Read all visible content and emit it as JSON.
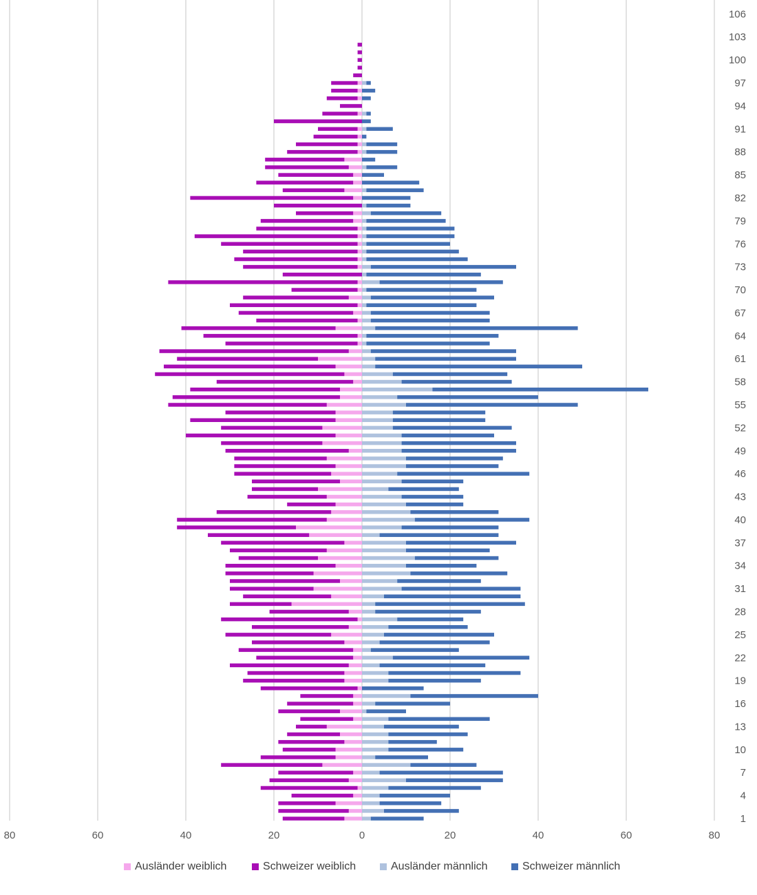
{
  "chart_data": {
    "type": "bar",
    "orientation": "horizontal-population-pyramid",
    "stacked": true,
    "title": "",
    "xlabel": "",
    "ylabel": "",
    "xlim": [
      -80,
      80
    ],
    "x_ticks": [
      -80,
      -60,
      -40,
      -20,
      0,
      20,
      40,
      60,
      80
    ],
    "x_tick_labels": [
      "80",
      "60",
      "40",
      "20",
      "0",
      "20",
      "40",
      "60",
      "80"
    ],
    "y_tick_labels": [
      "1",
      "4",
      "7",
      "10",
      "13",
      "16",
      "19",
      "22",
      "25",
      "28",
      "31",
      "34",
      "37",
      "40",
      "43",
      "46",
      "49",
      "52",
      "55",
      "58",
      "61",
      "64",
      "67",
      "70",
      "73",
      "76",
      "79",
      "82",
      "85",
      "88",
      "91",
      "94",
      "97",
      "100",
      "103",
      "106"
    ],
    "grid": "vertical",
    "legend_position": "bottom",
    "ages": [
      1,
      2,
      3,
      4,
      5,
      6,
      7,
      8,
      9,
      10,
      11,
      12,
      13,
      14,
      15,
      16,
      17,
      18,
      19,
      20,
      21,
      22,
      23,
      24,
      25,
      26,
      27,
      28,
      29,
      30,
      31,
      32,
      33,
      34,
      35,
      36,
      37,
      38,
      39,
      40,
      41,
      42,
      43,
      44,
      45,
      46,
      47,
      48,
      49,
      50,
      51,
      52,
      53,
      54,
      55,
      56,
      57,
      58,
      59,
      60,
      61,
      62,
      63,
      64,
      65,
      66,
      67,
      68,
      69,
      70,
      71,
      72,
      73,
      74,
      75,
      76,
      77,
      78,
      79,
      80,
      81,
      82,
      83,
      84,
      85,
      86,
      87,
      88,
      89,
      90,
      91,
      92,
      93,
      94,
      95,
      96,
      97,
      98,
      99,
      100,
      101,
      102,
      103,
      104,
      105,
      106
    ],
    "series": [
      {
        "name": "Ausländer weiblich",
        "color": "#f5a8ec",
        "side": "left",
        "values": [
          4,
          3,
          6,
          2,
          1,
          3,
          2,
          9,
          6,
          6,
          4,
          5,
          8,
          2,
          5,
          2,
          2,
          1,
          4,
          4,
          3,
          2,
          2,
          4,
          7,
          3,
          1,
          3,
          16,
          7,
          11,
          5,
          11,
          6,
          10,
          8,
          4,
          12,
          15,
          8,
          7,
          6,
          8,
          10,
          5,
          7,
          6,
          8,
          3,
          9,
          6,
          9,
          6,
          6,
          8,
          5,
          5,
          2,
          4,
          6,
          10,
          3,
          1,
          1,
          6,
          1,
          2,
          1,
          3,
          1,
          1,
          0,
          1,
          1,
          1,
          1,
          1,
          1,
          2,
          2,
          0,
          2,
          4,
          2,
          2,
          3,
          4,
          1,
          1,
          1,
          1,
          0,
          1,
          0,
          1,
          1,
          1,
          0,
          0,
          0,
          0,
          0,
          0,
          0,
          0,
          0
        ]
      },
      {
        "name": "Schweizer weiblich",
        "color": "#a80eb5",
        "side": "left",
        "values": [
          14,
          16,
          13,
          14,
          22,
          18,
          17,
          23,
          17,
          12,
          15,
          12,
          7,
          12,
          14,
          15,
          12,
          22,
          23,
          22,
          27,
          22,
          26,
          21,
          24,
          22,
          31,
          18,
          14,
          20,
          19,
          25,
          20,
          25,
          18,
          22,
          28,
          23,
          27,
          34,
          26,
          11,
          18,
          15,
          20,
          22,
          23,
          21,
          28,
          23,
          34,
          23,
          33,
          25,
          36,
          38,
          34,
          31,
          43,
          39,
          32,
          43,
          30,
          35,
          35,
          23,
          26,
          29,
          24,
          15,
          43,
          18,
          26,
          28,
          26,
          31,
          37,
          23,
          21,
          13,
          20,
          37,
          14,
          22,
          17,
          19,
          18,
          16,
          14,
          10,
          9,
          20,
          8,
          5,
          7,
          6,
          6,
          2,
          1,
          1,
          1,
          1,
          0,
          0,
          0,
          0
        ]
      },
      {
        "name": "Ausländer männlich",
        "color": "#afc2de",
        "side": "right",
        "values": [
          2,
          5,
          4,
          4,
          6,
          10,
          4,
          11,
          3,
          6,
          6,
          6,
          5,
          6,
          1,
          3,
          11,
          0,
          6,
          6,
          4,
          7,
          2,
          4,
          5,
          6,
          8,
          3,
          3,
          5,
          9,
          8,
          11,
          10,
          12,
          10,
          10,
          4,
          9,
          12,
          11,
          10,
          9,
          6,
          9,
          8,
          10,
          10,
          9,
          9,
          9,
          7,
          7,
          7,
          10,
          8,
          16,
          9,
          7,
          3,
          3,
          2,
          1,
          1,
          3,
          2,
          2,
          1,
          2,
          1,
          4,
          1,
          2,
          1,
          1,
          1,
          1,
          1,
          1,
          2,
          1,
          0,
          1,
          0,
          0,
          1,
          0,
          1,
          1,
          0,
          1,
          0,
          1,
          0,
          0,
          0,
          1,
          0,
          0,
          0,
          0,
          0,
          0,
          0,
          0,
          0
        ]
      },
      {
        "name": "Schweizer männlich",
        "color": "#4470b4",
        "side": "right",
        "values": [
          12,
          17,
          14,
          16,
          21,
          22,
          28,
          15,
          12,
          17,
          11,
          18,
          17,
          23,
          9,
          17,
          29,
          14,
          21,
          30,
          24,
          31,
          20,
          25,
          25,
          18,
          15,
          24,
          34,
          31,
          27,
          19,
          22,
          16,
          19,
          19,
          25,
          27,
          22,
          26,
          20,
          13,
          14,
          16,
          14,
          30,
          21,
          22,
          26,
          26,
          21,
          27,
          21,
          21,
          39,
          32,
          49,
          25,
          26,
          47,
          32,
          33,
          28,
          30,
          46,
          27,
          27,
          25,
          28,
          25,
          28,
          26,
          33,
          23,
          21,
          19,
          20,
          20,
          18,
          16,
          10,
          11,
          13,
          13,
          5,
          7,
          3,
          7,
          7,
          1,
          6,
          2,
          1,
          0,
          2,
          3,
          1,
          0,
          0,
          0,
          0,
          0,
          0,
          0,
          0,
          0
        ]
      }
    ]
  }
}
